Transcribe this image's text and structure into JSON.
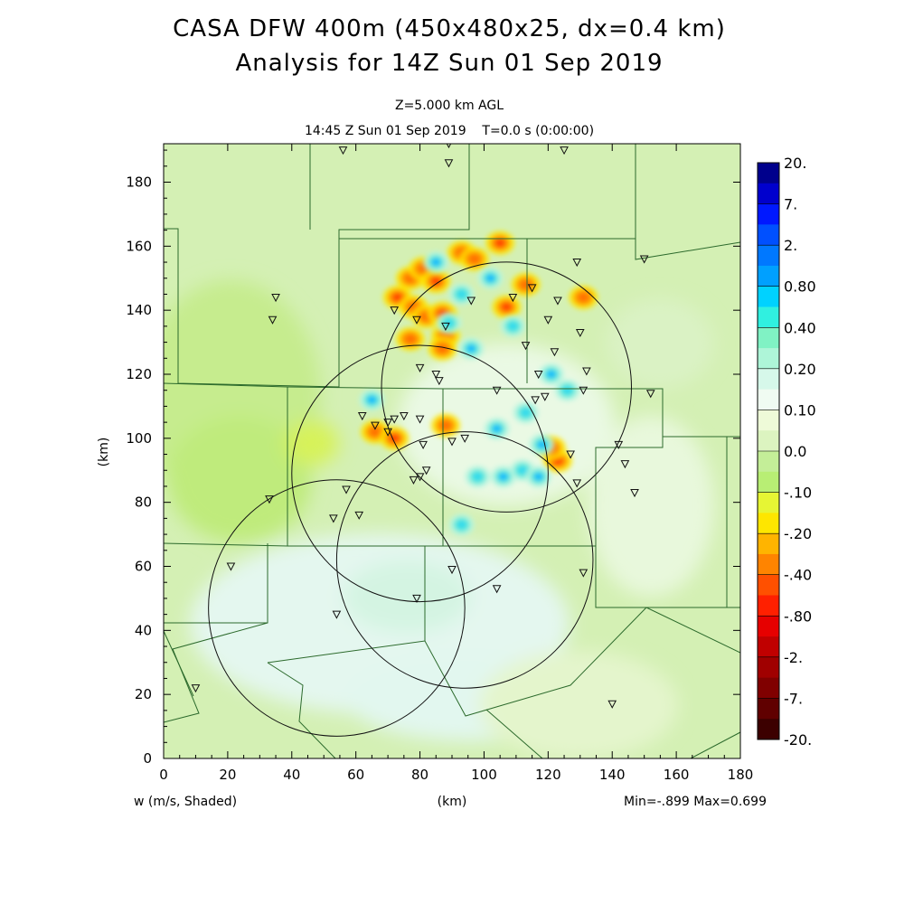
{
  "title": {
    "line1": "CASA DFW 400m (450x480x25, dx=0.4 km)",
    "line2": "Analysis for 14Z Sun 01 Sep 2019"
  },
  "subtitle": {
    "level": "Z=5.000 km AGL",
    "time": "14:45 Z Sun 01 Sep 2019    T=0.0 s (0:00:00)"
  },
  "chart_data": {
    "type": "heatmap",
    "field_label": "w (m/s, Shaded)",
    "xlabel": "(km)",
    "ylabel": "(km)",
    "xlim": [
      0,
      180
    ],
    "ylim": [
      0,
      192
    ],
    "x_ticks": [
      0,
      20,
      40,
      60,
      80,
      100,
      120,
      140,
      160,
      180
    ],
    "y_ticks": [
      0,
      20,
      40,
      60,
      80,
      100,
      120,
      140,
      160,
      180
    ],
    "stats": "Min=-.899 Max=0.699",
    "colorbar_labels": [
      "20.",
      "7.",
      "2.",
      "0.80",
      "0.40",
      "0.20",
      "0.10",
      "0.0",
      "-.10",
      "-.20",
      "-.40",
      "-.80",
      "-2.",
      "-7.",
      "-20."
    ],
    "colorbar_colors": [
      "#00008c",
      "#0000cd",
      "#0018ff",
      "#0050ff",
      "#0078ff",
      "#00a0ff",
      "#00d2ff",
      "#30f0e0",
      "#80f2c4",
      "#aef5d8",
      "#d6f8ea",
      "#f0fbf2",
      "#eefad8",
      "#dcf4c0",
      "#c4ee98",
      "#b8ee74",
      "#e6f534",
      "#fee600",
      "#ffb400",
      "#ff8400",
      "#ff5000",
      "#ff2000",
      "#e60000",
      "#c00000",
      "#a00000",
      "#800000",
      "#600000",
      "#3c0000"
    ],
    "radar_rings": [
      {
        "cx": 80,
        "cy": 89,
        "r": 40
      },
      {
        "cx": 107,
        "cy": 116,
        "r": 39
      },
      {
        "cx": 94,
        "cy": 62,
        "r": 40
      },
      {
        "cx": 54,
        "cy": 47,
        "r": 40
      }
    ],
    "stations": [
      [
        56,
        190
      ],
      [
        89,
        192
      ],
      [
        89,
        186
      ],
      [
        125,
        190
      ],
      [
        150,
        156
      ],
      [
        129,
        155
      ],
      [
        35,
        144
      ],
      [
        34,
        137
      ],
      [
        72,
        140
      ],
      [
        79,
        137
      ],
      [
        88,
        135
      ],
      [
        96,
        143
      ],
      [
        109,
        144
      ],
      [
        115,
        147
      ],
      [
        123,
        143
      ],
      [
        120,
        137
      ],
      [
        113,
        129
      ],
      [
        122,
        127
      ],
      [
        130,
        133
      ],
      [
        80,
        122
      ],
      [
        85,
        120
      ],
      [
        86,
        118
      ],
      [
        117,
        120
      ],
      [
        132,
        121
      ],
      [
        104,
        115
      ],
      [
        116,
        112
      ],
      [
        119,
        113
      ],
      [
        131,
        115
      ],
      [
        152,
        114
      ],
      [
        62,
        107
      ],
      [
        66,
        104
      ],
      [
        70,
        105
      ],
      [
        72,
        106
      ],
      [
        75,
        107
      ],
      [
        80,
        106
      ],
      [
        70,
        102
      ],
      [
        81,
        98
      ],
      [
        90,
        99
      ],
      [
        94,
        100
      ],
      [
        142,
        98
      ],
      [
        144,
        92
      ],
      [
        127,
        95
      ],
      [
        78,
        87
      ],
      [
        80,
        88
      ],
      [
        82,
        90
      ],
      [
        129,
        86
      ],
      [
        147,
        83
      ],
      [
        57,
        84
      ],
      [
        33,
        81
      ],
      [
        53,
        75
      ],
      [
        61,
        76
      ],
      [
        21,
        60
      ],
      [
        90,
        59
      ],
      [
        131,
        58
      ],
      [
        104,
        53
      ],
      [
        79,
        50
      ],
      [
        54,
        45
      ],
      [
        10,
        22
      ],
      [
        140,
        17
      ]
    ],
    "strong_updrafts": [
      [
        73,
        144
      ],
      [
        77,
        150
      ],
      [
        81,
        153
      ],
      [
        85,
        149
      ],
      [
        93,
        158
      ],
      [
        97,
        156
      ],
      [
        105,
        161
      ],
      [
        113,
        148
      ],
      [
        131,
        144
      ],
      [
        107,
        141
      ],
      [
        78,
        141
      ],
      [
        82,
        138
      ],
      [
        87,
        139
      ],
      [
        77,
        131
      ],
      [
        88,
        132
      ],
      [
        123,
        93
      ],
      [
        121,
        97
      ],
      [
        66,
        102
      ],
      [
        72,
        100
      ],
      [
        88,
        104
      ],
      [
        87,
        128
      ]
    ],
    "downdraft_cores": [
      [
        85,
        155
      ],
      [
        93,
        145
      ],
      [
        102,
        150
      ],
      [
        109,
        135
      ],
      [
        65,
        112
      ],
      [
        89,
        136
      ],
      [
        96,
        128
      ],
      [
        113,
        108
      ],
      [
        118,
        98
      ],
      [
        112,
        90
      ],
      [
        117,
        88
      ],
      [
        98,
        88
      ],
      [
        106,
        88
      ],
      [
        93,
        73
      ],
      [
        121,
        120
      ],
      [
        126,
        115
      ],
      [
        104,
        103
      ]
    ]
  }
}
